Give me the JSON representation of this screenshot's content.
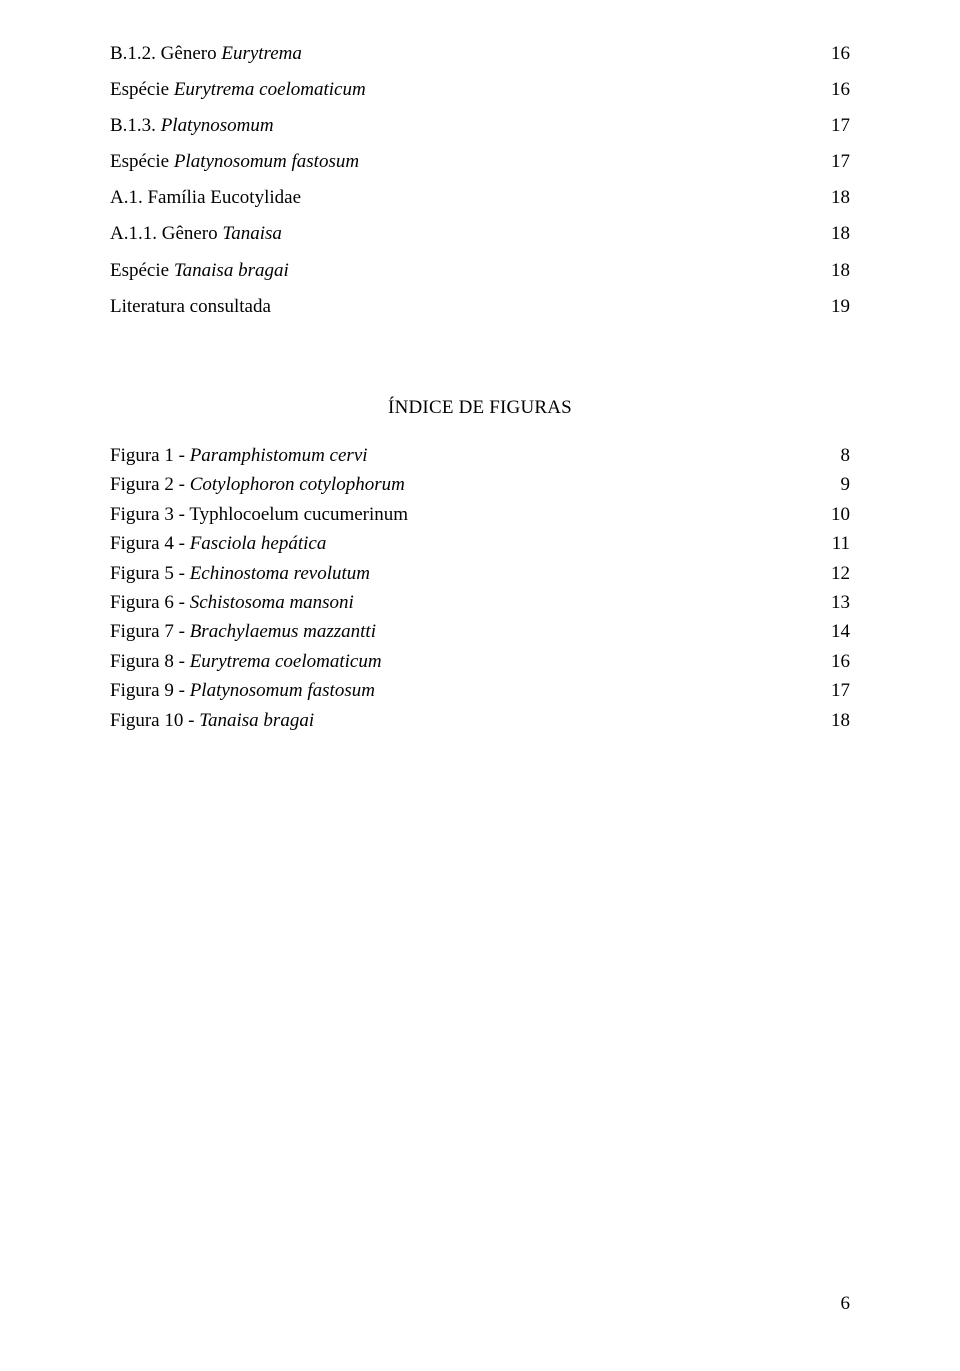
{
  "toc": [
    {
      "label_plain": "B.1.2. Gênero ",
      "label_italic": "Eurytrema",
      "page": "16"
    },
    {
      "label_plain": "Espécie ",
      "label_italic": "Eurytrema coelomaticum",
      "page": "16"
    },
    {
      "label_plain": "B.1.3. ",
      "label_italic": "Platynosomum",
      "page": "17"
    },
    {
      "label_plain": "Espécie ",
      "label_italic": "Platynosomum fastosum",
      "page": "17"
    },
    {
      "label_plain": "A.1. Família Eucotylidae",
      "label_italic": "",
      "page": "18"
    },
    {
      "label_plain": "A.1.1. Gênero ",
      "label_italic": "Tanaisa",
      "page": "18"
    },
    {
      "label_plain": "Espécie ",
      "label_italic": "Tanaisa bragai",
      "page": "18"
    },
    {
      "label_plain": "Literatura consultada",
      "label_italic": "",
      "page": "19"
    }
  ],
  "figures_title": "ÍNDICE DE FIGURAS",
  "figures": [
    {
      "label_plain": "Figura 1 - ",
      "label_italic": "Paramphistomum cervi",
      "page": "8"
    },
    {
      "label_plain": "Figura 2 - ",
      "label_italic": "Cotylophoron cotylophorum",
      "page": "9"
    },
    {
      "label_plain": "Figura 3 - Typhlocoelum cucumerinum",
      "label_italic": "",
      "page": "10"
    },
    {
      "label_plain": "Figura 4 - ",
      "label_italic": "Fasciola hepática",
      "page": "11"
    },
    {
      "label_plain": "Figura 5 - ",
      "label_italic": "Echinostoma revolutum",
      "page": "12"
    },
    {
      "label_plain": "Figura 6 - ",
      "label_italic": "Schistosoma mansoni",
      "page": "13"
    },
    {
      "label_plain": "Figura 7 - ",
      "label_italic": "Brachylaemus mazzantti",
      "page": "14"
    },
    {
      "label_plain": "Figura 8 - ",
      "label_italic": "Eurytrema coelomaticum",
      "page": "16"
    },
    {
      "label_plain": "Figura 9 - ",
      "label_italic": "Platynosomum fastosum",
      "page": "17"
    },
    {
      "label_plain": "Figura 10 - ",
      "label_italic": "Tanaisa bragai",
      "page": "18"
    }
  ],
  "page_number": "6"
}
